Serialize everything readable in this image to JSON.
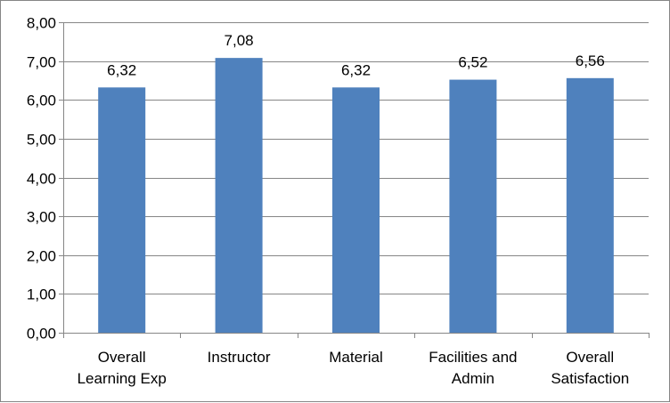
{
  "chart_data": {
    "type": "bar",
    "categories": [
      [
        "Overall",
        "Learning Exp"
      ],
      [
        "Instructor"
      ],
      [
        "Material"
      ],
      [
        "Facilities and",
        "Admin"
      ],
      [
        "Overall",
        "Satisfaction"
      ]
    ],
    "values": [
      6.32,
      7.08,
      6.32,
      6.52,
      6.56
    ],
    "data_labels": [
      "6,32",
      "7,08",
      "6,32",
      "6,52",
      "6,56"
    ],
    "y_ticks": [
      0,
      1,
      2,
      3,
      4,
      5,
      6,
      7,
      8
    ],
    "y_tick_labels": [
      "0,00",
      "1,00",
      "2,00",
      "3,00",
      "4,00",
      "5,00",
      "6,00",
      "7,00",
      "8,00"
    ],
    "ylim": [
      0,
      8
    ],
    "grid": true,
    "legend": "none",
    "bar_color": "#4F81BD",
    "grid_color": "#868686"
  }
}
